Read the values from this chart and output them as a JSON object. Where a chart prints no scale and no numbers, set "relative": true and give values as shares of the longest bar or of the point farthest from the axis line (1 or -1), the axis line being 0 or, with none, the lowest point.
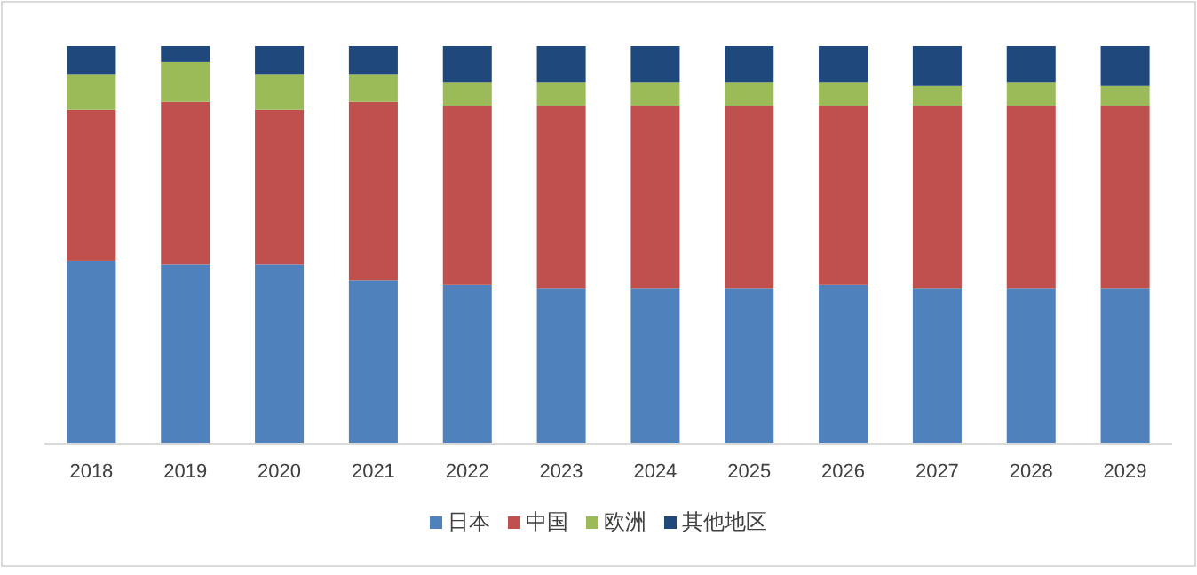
{
  "chart_data": {
    "type": "bar",
    "stacked": true,
    "relative": true,
    "legend": "bottom",
    "categories": [
      "2018",
      "2019",
      "2020",
      "2021",
      "2022",
      "2023",
      "2024",
      "2025",
      "2026",
      "2027",
      "2028",
      "2029"
    ],
    "series": [
      {
        "name": "日本",
        "color": "#4f81bd",
        "values": [
          0.46,
          0.45,
          0.45,
          0.41,
          0.4,
          0.39,
          0.39,
          0.39,
          0.4,
          0.39,
          0.39,
          0.39
        ]
      },
      {
        "name": "中国",
        "color": "#c0504d",
        "values": [
          0.38,
          0.41,
          0.39,
          0.45,
          0.45,
          0.46,
          0.46,
          0.46,
          0.45,
          0.46,
          0.46,
          0.46
        ]
      },
      {
        "name": "欧洲",
        "color": "#9bbb59",
        "values": [
          0.09,
          0.1,
          0.09,
          0.07,
          0.06,
          0.06,
          0.06,
          0.06,
          0.06,
          0.05,
          0.06,
          0.05
        ]
      },
      {
        "name": "其他地区",
        "color": "#1f497d",
        "values": [
          0.07,
          0.04,
          0.07,
          0.07,
          0.09,
          0.09,
          0.09,
          0.09,
          0.09,
          0.1,
          0.09,
          0.1
        ]
      }
    ]
  }
}
